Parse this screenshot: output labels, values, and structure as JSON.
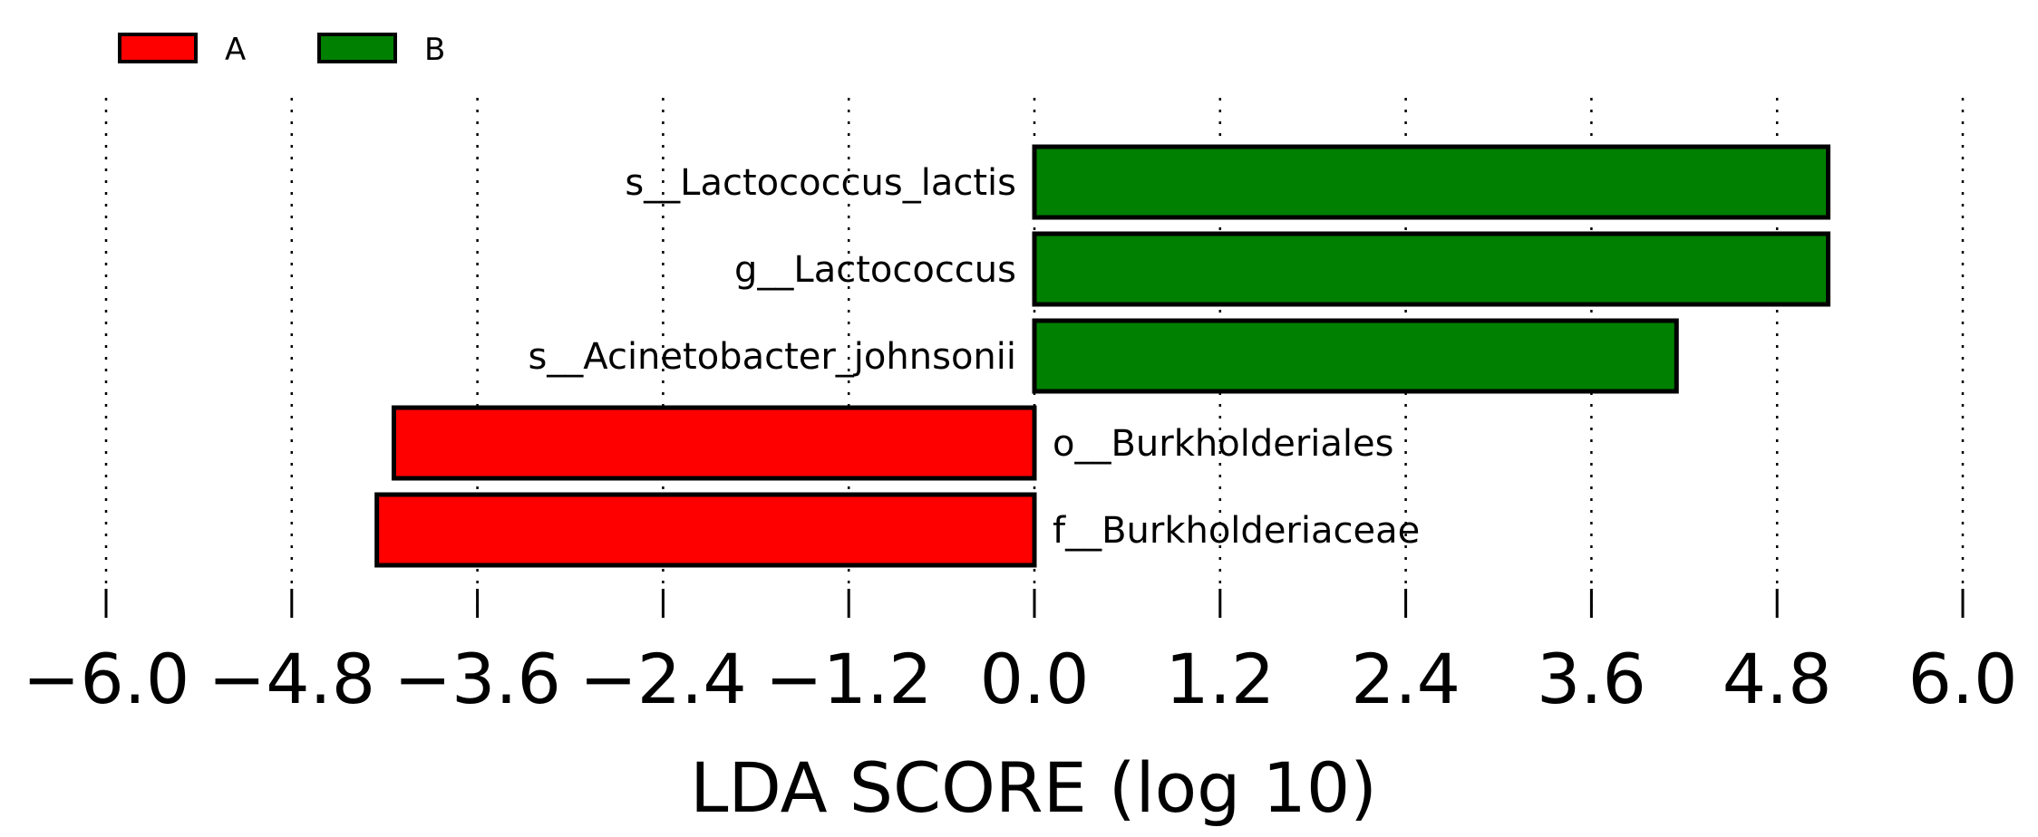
{
  "chart_data": {
    "type": "bar",
    "orientation": "horizontal",
    "xlabel": "LDA SCORE (log 10)",
    "xlim": [
      -6.0,
      6.0
    ],
    "xticks": [
      -6.0,
      -4.8,
      -3.6,
      -2.4,
      -1.2,
      0.0,
      1.2,
      2.4,
      3.6,
      4.8,
      6.0
    ],
    "xtick_labels": [
      "−6.0",
      "−4.8",
      "−3.6",
      "−2.4",
      "−1.2",
      "0.0",
      "1.2",
      "2.4",
      "3.6",
      "4.8",
      "6.0"
    ],
    "grid": "vertical dotted",
    "legend_position": "top-left",
    "legend": [
      {
        "name": "A",
        "color": "#ff0000"
      },
      {
        "name": "B",
        "color": "#008000"
      }
    ],
    "bars": [
      {
        "label": "s__Lactococcus_lactis",
        "value": 5.13,
        "group": "B",
        "color": "#008000"
      },
      {
        "label": "g__Lactococcus",
        "value": 5.13,
        "group": "B",
        "color": "#008000"
      },
      {
        "label": "s__Acinetobacter_johnsonii",
        "value": 4.15,
        "group": "B",
        "color": "#008000"
      },
      {
        "label": "o__Burkholderiales",
        "value": -4.14,
        "group": "A",
        "color": "#ff0000"
      },
      {
        "label": "f__Burkholderiaceae",
        "value": -4.25,
        "group": "A",
        "color": "#ff0000"
      }
    ]
  }
}
